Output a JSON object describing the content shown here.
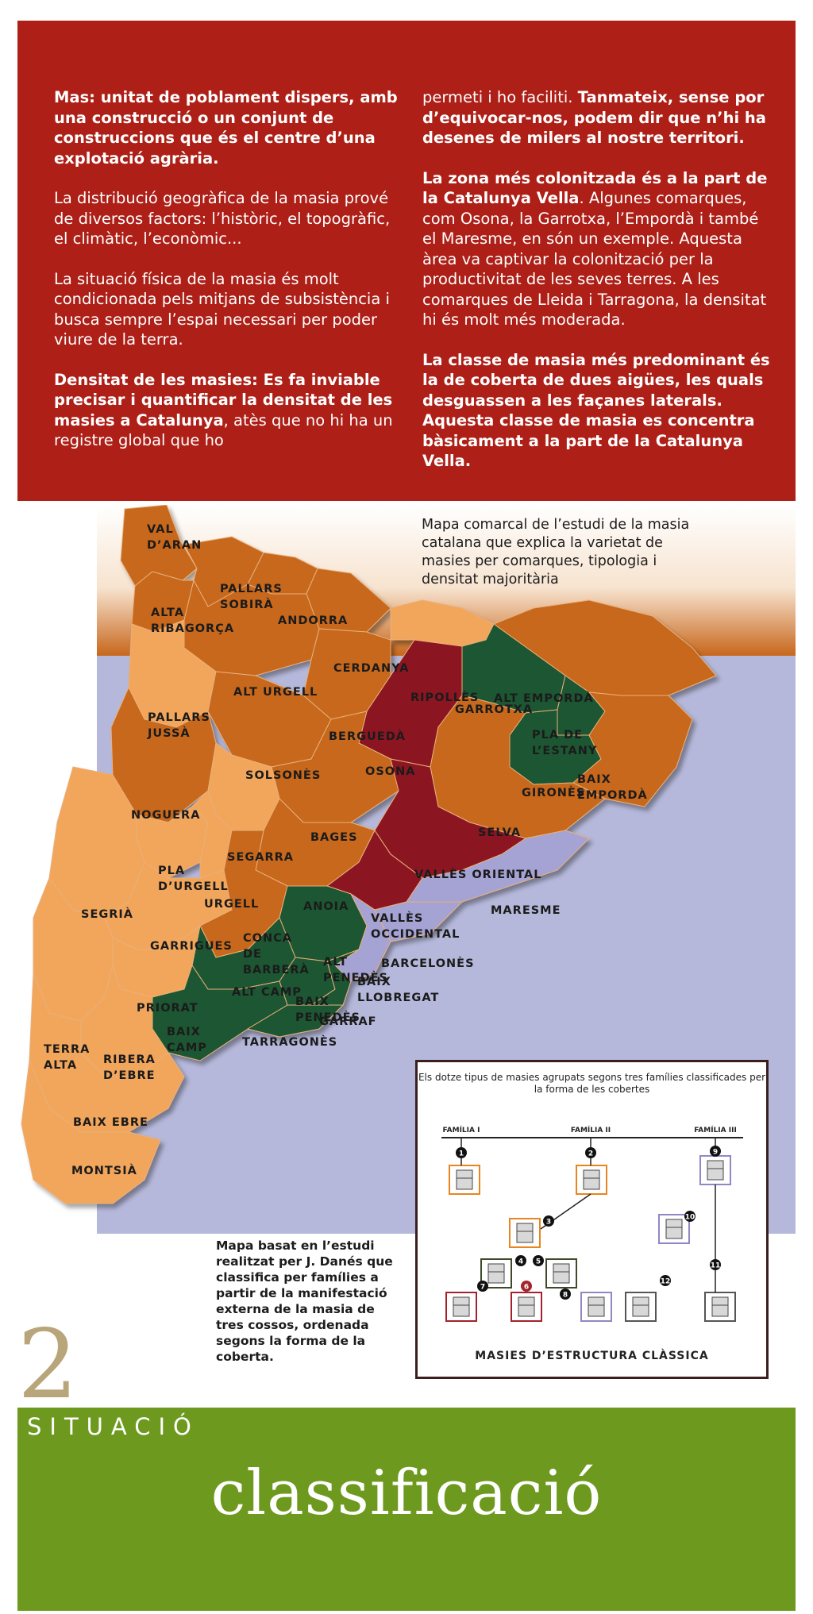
{
  "panel_text": {
    "left": [
      {
        "bold": "Mas: unitat de poblament dispers, amb una construcció o un conjunt de construccions que és el centre d’una explotació agrària.",
        "normal": ""
      },
      {
        "bold": "",
        "normal": "La distribució geogràfica de la masia prové de diversos factors: l’històric, el topogràfic, el climàtic, l’econòmic..."
      },
      {
        "bold": "",
        "normal": "La situació física de la masia és molt condicionada pels mitjans de subsistència i busca sempre l’espai necessari per poder viure de la terra."
      },
      {
        "bold": "Densitat de les masies: Es fa inviable precisar i quantificar la densitat de les masies a Catalunya",
        "normal": ", atès que no hi ha un registre global que ho"
      }
    ],
    "right": [
      {
        "normal": "permeti i ho faciliti. ",
        "bold": "Tanmateix, sense por d’equivocar-nos, podem dir que n’hi ha desenes de milers al nostre territori."
      },
      {
        "bold": "La zona més colonitzada és a la part de la Catalunya Vella",
        "normal": ". Algunes comarques, com Osona, la Garrotxa, l’Empordà i també el Maresme, en són un exemple. Aquesta àrea va captivar la colonització per la productivitat de les seves terres. A les comarques de Lleida i Tarragona, la densitat hi és molt més moderada."
      },
      {
        "bold": "La classe de masia més predominant és la de coberta de dues aigües, les quals desguassen a les façanes laterals. Aquesta classe de masia es concentra bàsicament a la part de la Catalunya Vella.",
        "normal": ""
      }
    ]
  },
  "map": {
    "caption": "Mapa comarcal de l’estudi de la masia catalana que explica la varietat de masies per comarques, tipologia i densitat majoritària",
    "note": "Mapa basat en l’estudi realitzat per J. Danés que classifica per famílies a partir de la manifestació externa de la masia de tres cossos, ordenada segons la forma de la coberta.",
    "colors": {
      "light": "#f2a65c",
      "medium": "#c7671c",
      "green": "#1b5630",
      "crimson": "#8b1424",
      "lavender": "#a5a2d4",
      "sea": "#b5b8da"
    },
    "regions": [
      {
        "name": "VAL D’ARAN",
        "fill": "medium"
      },
      {
        "name": "PALLARS SOBIRÀ",
        "fill": "medium"
      },
      {
        "name": "ALTA RIBAGORÇA",
        "fill": "medium"
      },
      {
        "name": "ANDORRA",
        "fill": "medium"
      },
      {
        "name": "CERDANYA",
        "fill": "medium"
      },
      {
        "name": "RIPOLLÈS",
        "fill": "light"
      },
      {
        "name": "ALT EMPORDÀ",
        "fill": "medium"
      },
      {
        "name": "ALT URGELL",
        "fill": "medium"
      },
      {
        "name": "BERGUEDÀ",
        "fill": "medium"
      },
      {
        "name": "GARROTXA",
        "fill": "green"
      },
      {
        "name": "PALLARS JUSSÀ",
        "fill": "light"
      },
      {
        "name": "PLA DE L’ESTANY",
        "fill": "green"
      },
      {
        "name": "OSONA",
        "fill": "crimson"
      },
      {
        "name": "GIRONÈS",
        "fill": "green"
      },
      {
        "name": "BAIX EMPORDÀ",
        "fill": "medium"
      },
      {
        "name": "NOGUERA",
        "fill": "medium"
      },
      {
        "name": "SOLSONÈS",
        "fill": "medium"
      },
      {
        "name": "BAGES",
        "fill": "medium"
      },
      {
        "name": "SELVA",
        "fill": "medium"
      },
      {
        "name": "SEGARRA",
        "fill": "light"
      },
      {
        "name": "PLA D’URGELL",
        "fill": "light"
      },
      {
        "name": "VALLÈS ORIENTAL",
        "fill": "crimson"
      },
      {
        "name": "URGELL",
        "fill": "light"
      },
      {
        "name": "SEGRIÀ",
        "fill": "light"
      },
      {
        "name": "ANOIA",
        "fill": "medium"
      },
      {
        "name": "VALLÈS OCCIDENTAL",
        "fill": "crimson"
      },
      {
        "name": "MARESME",
        "fill": "lavender"
      },
      {
        "name": "GARRIGUES",
        "fill": "light"
      },
      {
        "name": "CONCA DE BARBERÀ",
        "fill": "medium"
      },
      {
        "name": "ALT PENEDÈS",
        "fill": "green"
      },
      {
        "name": "BARCELONÈS",
        "fill": "lavender"
      },
      {
        "name": "BAIX LLOBREGAT",
        "fill": "lavender"
      },
      {
        "name": "ALT CAMP",
        "fill": "green"
      },
      {
        "name": "BAIX PENEDÈS",
        "fill": "green"
      },
      {
        "name": "GARRAF",
        "fill": "green"
      },
      {
        "name": "PRIORAT",
        "fill": "light"
      },
      {
        "name": "BAIX CAMP",
        "fill": "green"
      },
      {
        "name": "TARRAGONÈS",
        "fill": "green"
      },
      {
        "name": "TERRA ALTA",
        "fill": "light"
      },
      {
        "name": "RIBERA D’EBRE",
        "fill": "light"
      },
      {
        "name": "BAIX EBRE",
        "fill": "light"
      },
      {
        "name": "MONTSIÀ",
        "fill": "light"
      }
    ]
  },
  "diagram": {
    "title": "Els dotze tipus de masies agrupats segons tres famílies classificades per la forma de les cobertes",
    "families": [
      "FAMÍLIA I",
      "FAMÍLIA II",
      "FAMÍLIA III"
    ],
    "types": [
      "1",
      "2",
      "3",
      "4",
      "5",
      "6",
      "7",
      "8",
      "9",
      "10",
      "11",
      "12"
    ],
    "footer": "MASIES D’ESTRUCTURA CLÀSSICA"
  },
  "section": {
    "number": "2",
    "name": "SITUACIÓ",
    "subtitle": "classificació"
  }
}
